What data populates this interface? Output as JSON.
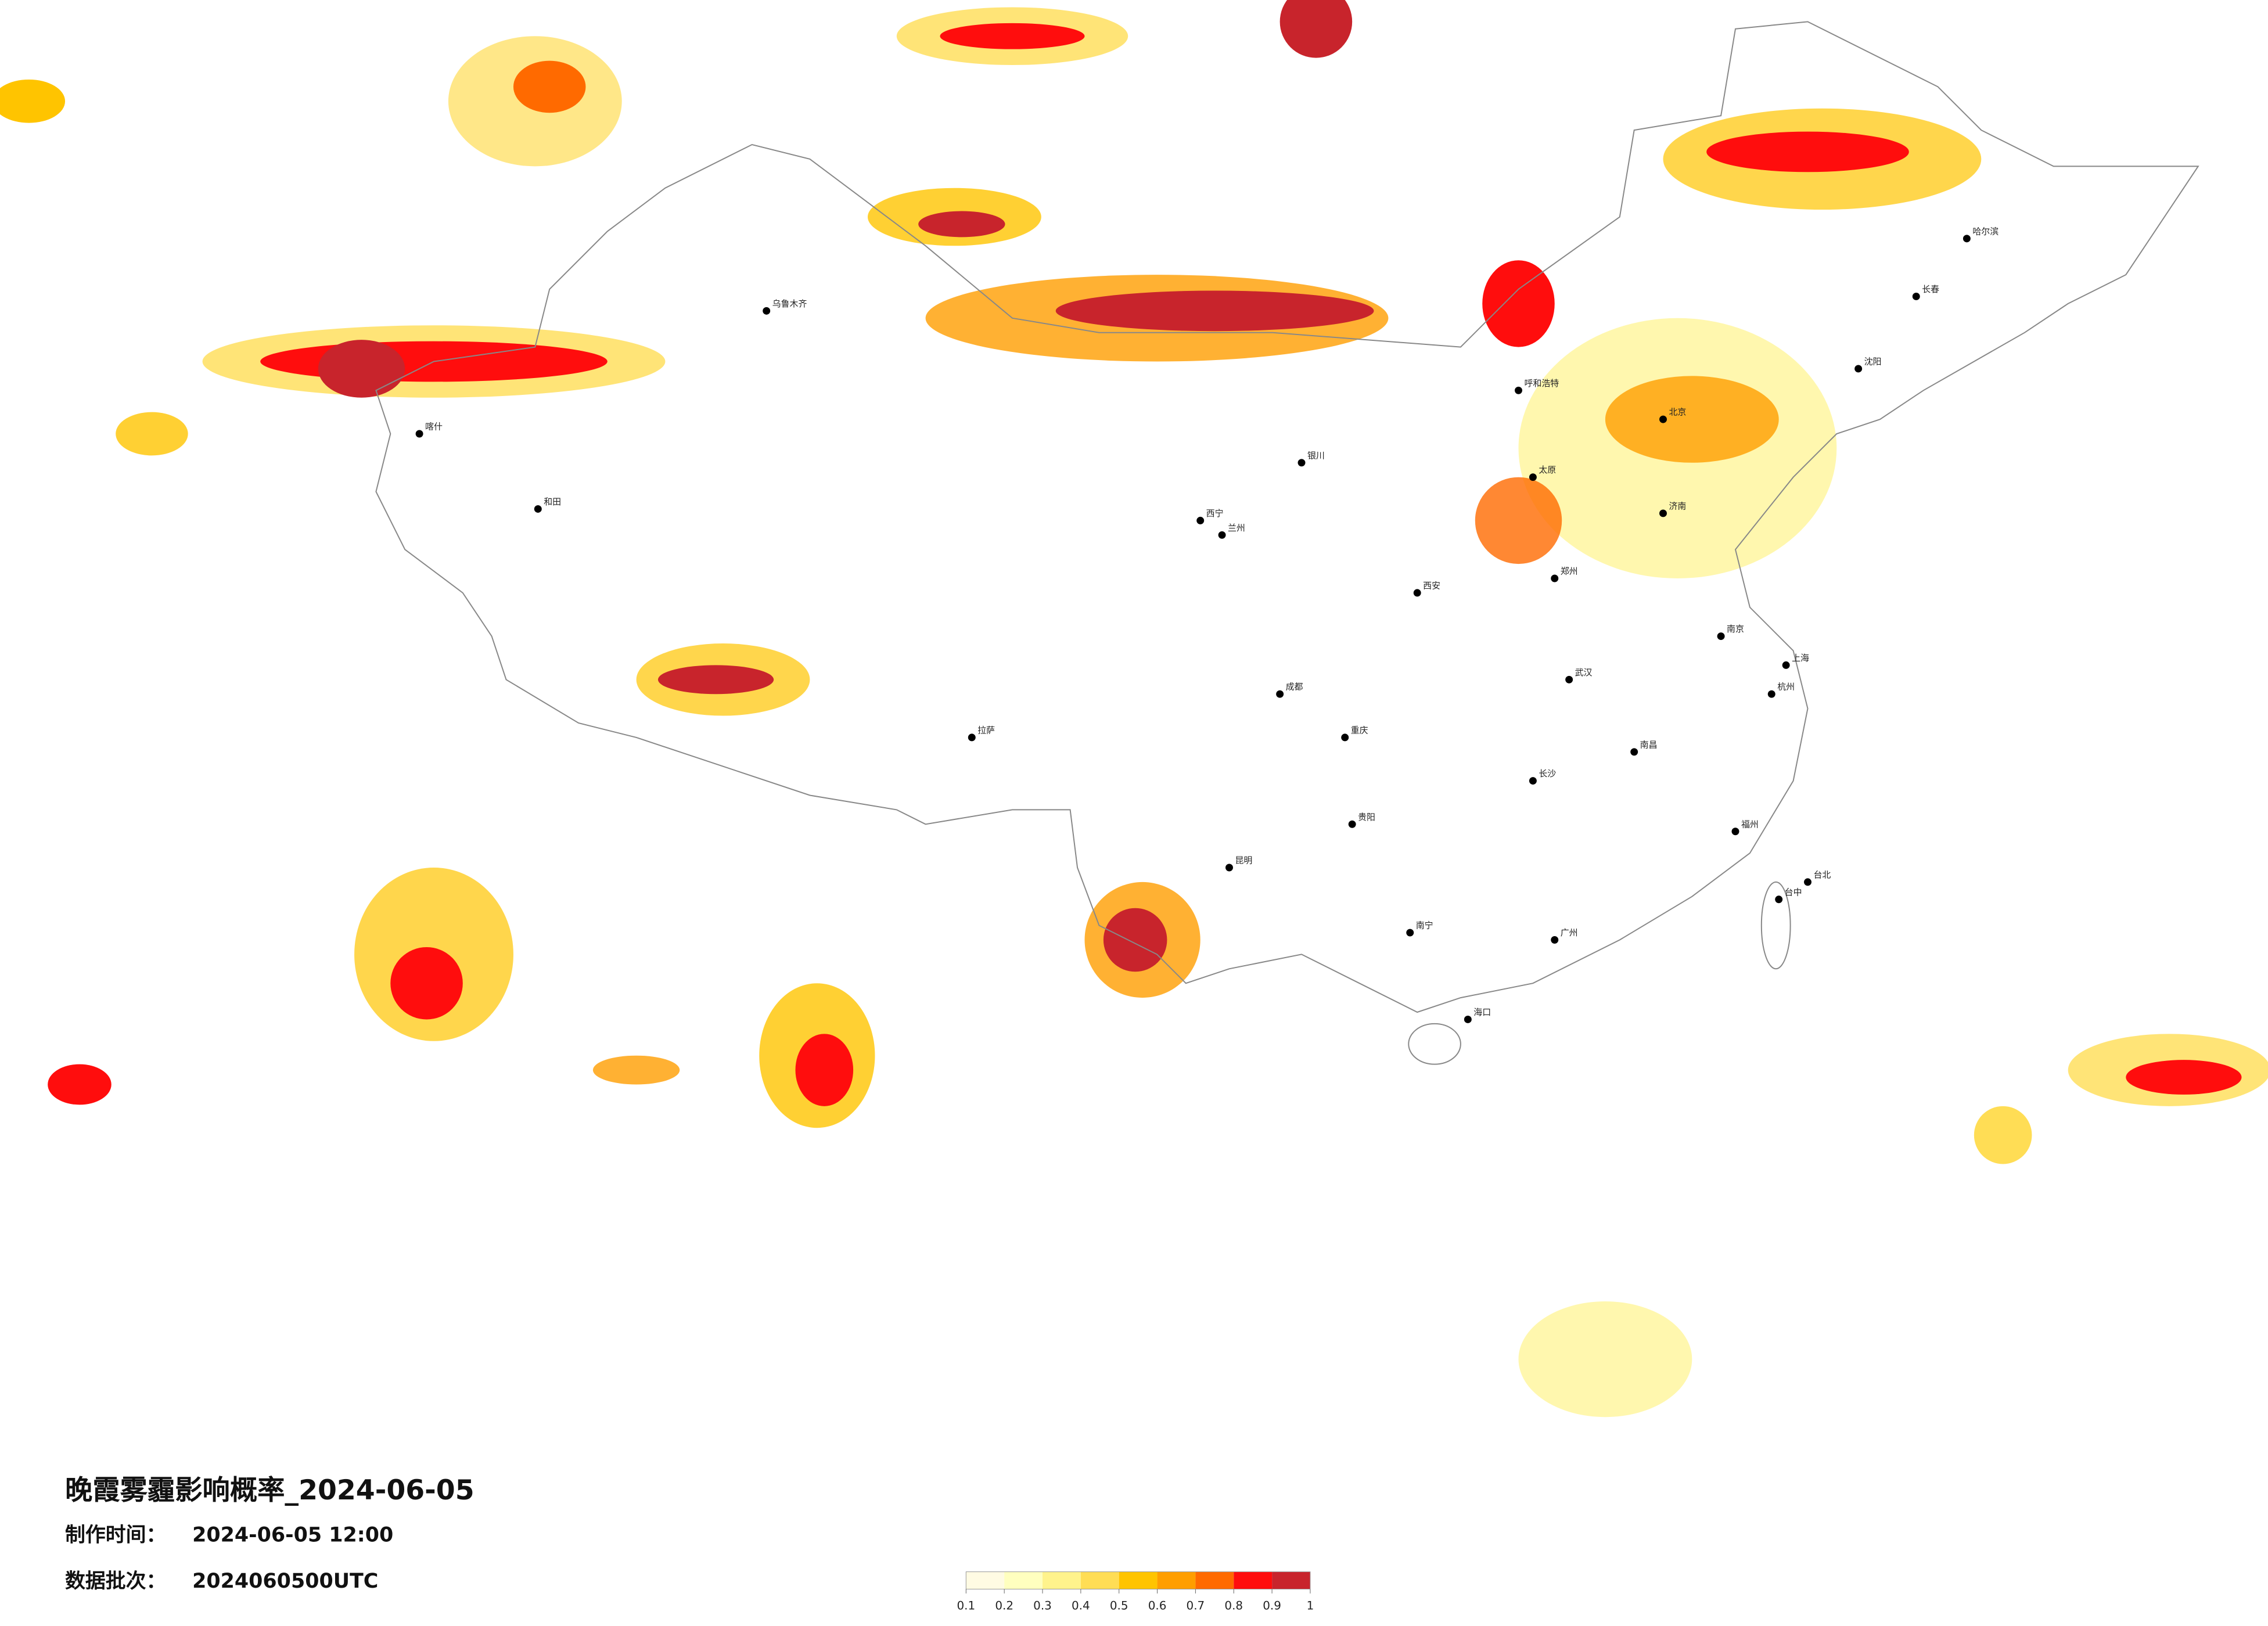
{
  "title": "晚霞雾霾影响概率_2024-06-05",
  "produced_label": "制作时间：",
  "produced": "2024-06-05 12:00",
  "batch_label": "数据批次：",
  "batch": "2024060500UTC",
  "legend": {
    "colors": [
      "#fffbe3",
      "#ffffbf",
      "#fff38c",
      "#ffdd55",
      "#ffc400",
      "#ff9e00",
      "#ff6a00",
      "#ff0d0d",
      "#c8242c"
    ],
    "ticks": [
      0.1,
      0.2,
      0.3,
      0.4,
      0.5,
      0.6,
      0.7,
      0.8,
      0.9,
      1
    ]
  },
  "cities": [
    "北京",
    "上海",
    "广州",
    "成都",
    "重庆",
    "武汉",
    "西安",
    "兰州",
    "乌鲁木齐",
    "拉萨",
    "哈尔滨",
    "长春",
    "沈阳",
    "昆明",
    "贵阳",
    "南宁",
    "海口",
    "郑州",
    "济南",
    "南京",
    "杭州",
    "福州",
    "南昌",
    "长沙",
    "太原",
    "呼和浩特",
    "银川",
    "西宁",
    "和田",
    "喀什",
    "台北",
    "台中"
  ]
}
